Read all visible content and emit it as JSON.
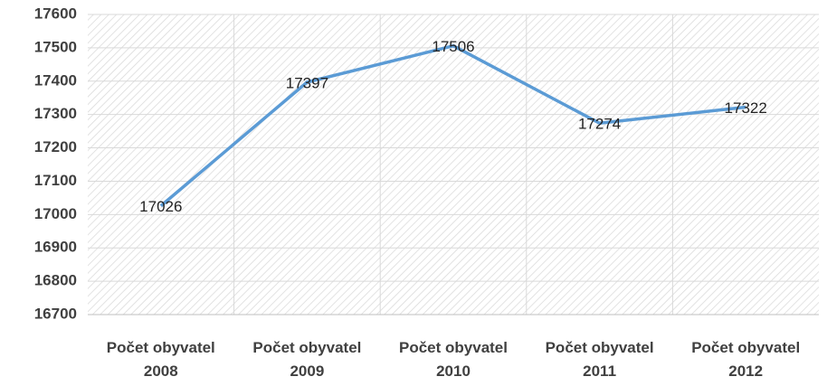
{
  "chart_data": {
    "type": "line",
    "categories": [
      "Počet obyvatel 2008",
      "Počet obyvatel 2009",
      "Počet obyvatel 2010",
      "Počet obyvatel 2011",
      "Počet obyvatel 2012"
    ],
    "series": [
      {
        "name": null,
        "color": "#5b9bd5",
        "values": [
          17026,
          17397,
          17506,
          17274,
          17322
        ]
      }
    ],
    "ylim": [
      16700,
      17600
    ],
    "yticks": [
      16700,
      16800,
      16900,
      17000,
      17100,
      17200,
      17300,
      17400,
      17500,
      17600
    ],
    "grid": true
  }
}
